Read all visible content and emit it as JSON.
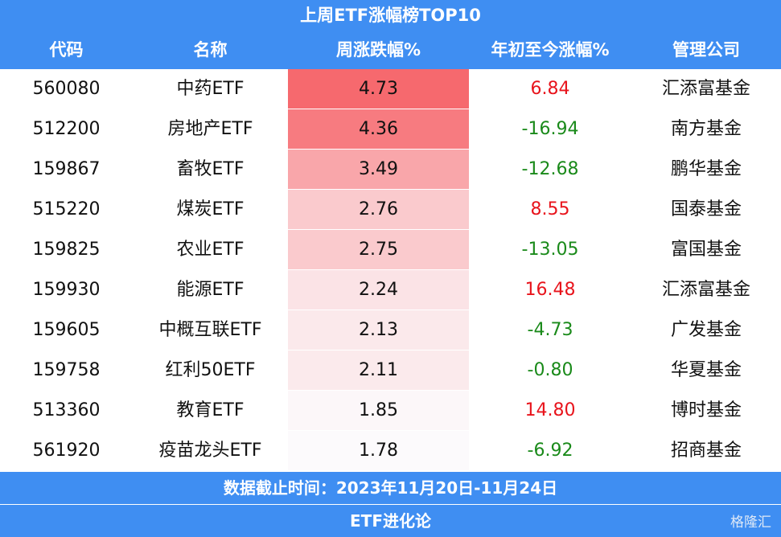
{
  "title": "上周ETF涨幅榜TOP10",
  "table": {
    "header": [
      "代码",
      "名称",
      "周涨跌幅%",
      "年初至今涨幅%",
      "管理公司"
    ],
    "rows": [
      [
        "560080",
        "中药ETF",
        "4.73",
        "6.84",
        "汇添富基金"
      ],
      [
        "512200",
        "房地产ETF",
        "4.36",
        "-16.94",
        "南方基金"
      ],
      [
        "159867",
        "畜牧ETF",
        "3.49",
        "-12.68",
        "鹏华基金"
      ],
      [
        "515220",
        "煤炭ETF",
        "2.76",
        "8.55",
        "国泰基金"
      ],
      [
        "159825",
        "农业ETF",
        "2.75",
        "-13.05",
        "富国基金"
      ],
      [
        "159930",
        "能源ETF",
        "2.24",
        "16.48",
        "汇添富基金"
      ],
      [
        "159605",
        "中概互联ETF",
        "2.13",
        "-4.73",
        "广发基金"
      ],
      [
        "159758",
        "红利50ETF",
        "2.11",
        "-0.80",
        "华夏基金"
      ],
      [
        "513360",
        "教育ETF",
        "1.85",
        "14.80",
        "博时基金"
      ],
      [
        "561920",
        "疫苗龙头ETF",
        "1.78",
        "-6.92",
        "招商基金"
      ]
    ]
  },
  "footer": {
    "date_note": "数据截止时间：2023年11月20日-11月24日",
    "source": "ETF进化论",
    "watermark": "格隆汇"
  }
}
